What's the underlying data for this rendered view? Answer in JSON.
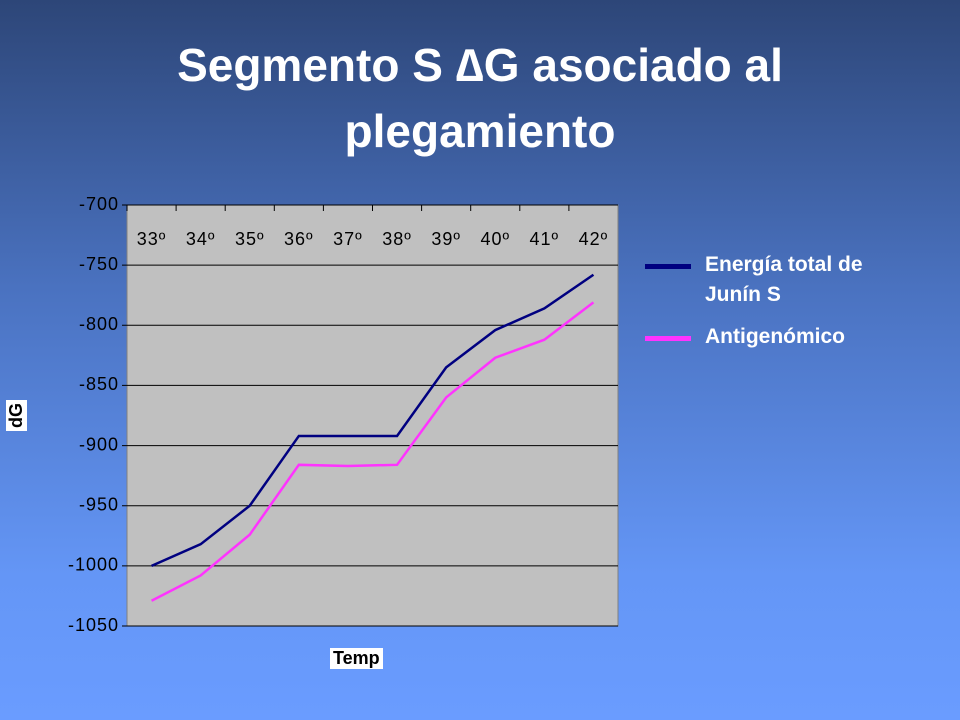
{
  "chart_data": {
    "type": "line",
    "title": "Segmento S ∆G asociado al plegamiento",
    "x_label": "Temp",
    "y_label": "dG",
    "categories": [
      "33º",
      "34º",
      "35º",
      "36º",
      "37º",
      "38º",
      "39º",
      "40º",
      "41º",
      "42º"
    ],
    "series": [
      {
        "name": "Energía total de Junín S",
        "color": "#000080",
        "values": [
          -1000,
          -982,
          -950,
          -892,
          -892,
          -892,
          -835,
          -804,
          -786,
          -758
        ]
      },
      {
        "name": "Antigenómico",
        "color": "#ff33ff",
        "values": [
          -1029,
          -1008,
          -974,
          -916,
          -917,
          -916,
          -860,
          -827,
          -812,
          -781
        ]
      }
    ],
    "ylim": [
      -1050,
      -700
    ],
    "yticks": [
      -700,
      -750,
      -800,
      -850,
      -900,
      -950,
      -1000,
      -1050
    ],
    "grid": true,
    "legend": "right"
  }
}
